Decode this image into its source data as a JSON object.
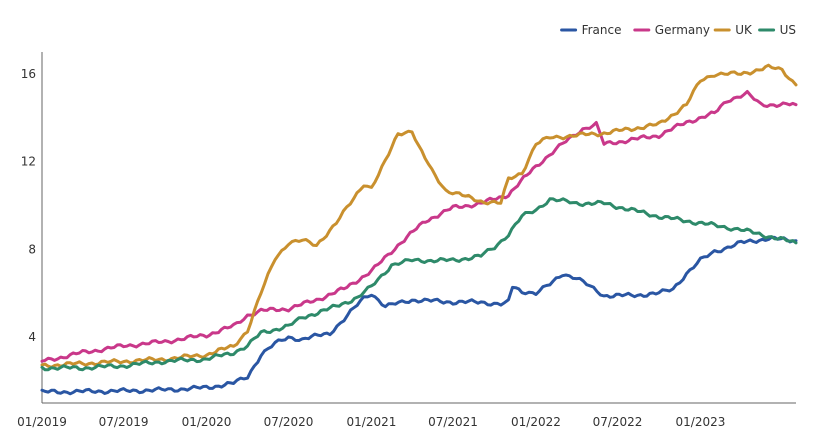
{
  "chart_data": {
    "type": "line",
    "title": "",
    "xlabel": "",
    "ylabel": "",
    "x_axis": {
      "type": "time",
      "range": [
        "2019-01",
        "2023-08"
      ],
      "tick_labels": [
        "01/2019",
        "07/2019",
        "01/2020",
        "07/2020",
        "01/2021",
        "07/2021",
        "01/2022",
        "07/2022",
        "01/2023"
      ],
      "tick_dates": [
        "2019-01",
        "2019-07",
        "2020-01",
        "2020-07",
        "2021-01",
        "2021-07",
        "2022-01",
        "2022-07",
        "2023-01"
      ]
    },
    "y_axis": {
      "range": [
        1,
        17
      ],
      "ticks": [
        4,
        8,
        12,
        16
      ],
      "tick_labels": [
        "4",
        "8",
        "12",
        "16"
      ]
    },
    "grid": false,
    "legend": {
      "position": "top-right"
    },
    "series": [
      {
        "name": "France",
        "color": "#2a56a3",
        "points": [
          [
            "2019-01-01",
            1.5
          ],
          [
            "2019-07-01",
            1.55
          ],
          [
            "2019-10-01",
            1.6
          ],
          [
            "2020-01-01",
            1.7
          ],
          [
            "2020-03-01",
            1.9
          ],
          [
            "2020-04-01",
            2.2
          ],
          [
            "2020-05-01",
            3.2
          ],
          [
            "2020-06-01",
            3.7
          ],
          [
            "2020-07-01",
            4.0
          ],
          [
            "2020-08-01",
            3.9
          ],
          [
            "2020-10-01",
            4.2
          ],
          [
            "2020-11-01",
            4.8
          ],
          [
            "2020-12-15",
            5.8
          ],
          [
            "2021-01-01",
            6.0
          ],
          [
            "2021-02-01",
            5.4
          ],
          [
            "2021-04-01",
            5.7
          ],
          [
            "2021-07-01",
            5.6
          ],
          [
            "2021-09-01",
            5.6
          ],
          [
            "2021-10-15",
            5.5
          ],
          [
            "2021-11-01",
            5.6
          ],
          [
            "2021-11-10",
            6.3
          ],
          [
            "2021-12-01",
            6.1
          ],
          [
            "2022-01-01",
            6.0
          ],
          [
            "2022-02-01",
            6.4
          ],
          [
            "2022-03-01",
            6.9
          ],
          [
            "2022-04-01",
            6.7
          ],
          [
            "2022-05-01",
            6.3
          ],
          [
            "2022-06-01",
            5.9
          ],
          [
            "2022-08-01",
            5.9
          ],
          [
            "2022-10-01",
            6.0
          ],
          [
            "2022-11-01",
            6.2
          ],
          [
            "2022-12-01",
            6.9
          ],
          [
            "2023-01-01",
            7.5
          ],
          [
            "2023-02-01",
            7.9
          ],
          [
            "2023-04-01",
            8.3
          ],
          [
            "2023-06-01",
            8.5
          ],
          [
            "2023-08-01",
            8.4
          ]
        ]
      },
      {
        "name": "Germany",
        "color": "#c9388a",
        "points": [
          [
            "2019-01-01",
            2.9
          ],
          [
            "2019-04-01",
            3.3
          ],
          [
            "2019-07-01",
            3.6
          ],
          [
            "2019-10-01",
            3.8
          ],
          [
            "2020-01-01",
            4.1
          ],
          [
            "2020-03-01",
            4.5
          ],
          [
            "2020-04-01",
            5.0
          ],
          [
            "2020-05-01",
            5.2
          ],
          [
            "2020-07-01",
            5.3
          ],
          [
            "2020-09-01",
            5.7
          ],
          [
            "2020-11-01",
            6.2
          ],
          [
            "2021-01-01",
            7.0
          ],
          [
            "2021-03-01",
            8.2
          ],
          [
            "2021-05-01",
            9.3
          ],
          [
            "2021-07-01",
            9.9
          ],
          [
            "2021-09-01",
            10.1
          ],
          [
            "2021-11-01",
            10.5
          ],
          [
            "2022-01-01",
            11.8
          ],
          [
            "2022-03-01",
            12.8
          ],
          [
            "2022-04-15",
            13.5
          ],
          [
            "2022-05-15",
            13.7
          ],
          [
            "2022-06-01",
            12.8
          ],
          [
            "2022-08-01",
            13.0
          ],
          [
            "2022-10-01",
            13.2
          ],
          [
            "2022-12-01",
            13.8
          ],
          [
            "2023-02-01",
            14.2
          ],
          [
            "2023-03-01",
            14.8
          ],
          [
            "2023-04-15",
            15.1
          ],
          [
            "2023-05-15",
            14.6
          ],
          [
            "2023-08-01",
            14.6
          ]
        ]
      },
      {
        "name": "UK",
        "color": "#c9902e",
        "points": [
          [
            "2019-01-01",
            2.7
          ],
          [
            "2019-04-01",
            2.8
          ],
          [
            "2019-07-01",
            2.9
          ],
          [
            "2019-10-01",
            3.0
          ],
          [
            "2020-01-01",
            3.2
          ],
          [
            "2020-03-01",
            3.6
          ],
          [
            "2020-04-01",
            4.3
          ],
          [
            "2020-05-01",
            6.0
          ],
          [
            "2020-06-01",
            7.6
          ],
          [
            "2020-07-01",
            8.3
          ],
          [
            "2020-08-01",
            8.4
          ],
          [
            "2020-09-01",
            8.2
          ],
          [
            "2020-10-15",
            9.2
          ],
          [
            "2020-11-15",
            10.1
          ],
          [
            "2020-12-15",
            11.0
          ],
          [
            "2021-01-01",
            10.8
          ],
          [
            "2021-02-01",
            12.0
          ],
          [
            "2021-03-01",
            13.3
          ],
          [
            "2021-04-01",
            13.4
          ],
          [
            "2021-04-15",
            12.7
          ],
          [
            "2021-05-15",
            11.6
          ],
          [
            "2021-06-15",
            10.7
          ],
          [
            "2021-07-15",
            10.5
          ],
          [
            "2021-09-01",
            10.2
          ],
          [
            "2021-10-15",
            10.1
          ],
          [
            "2021-11-01",
            11.2
          ],
          [
            "2021-12-01",
            11.5
          ],
          [
            "2022-01-01",
            12.8
          ],
          [
            "2022-02-01",
            13.1
          ],
          [
            "2022-04-01",
            13.2
          ],
          [
            "2022-06-01",
            13.3
          ],
          [
            "2022-08-01",
            13.5
          ],
          [
            "2022-10-01",
            13.7
          ],
          [
            "2022-12-01",
            14.6
          ],
          [
            "2023-01-01",
            15.7
          ],
          [
            "2023-02-01",
            16.0
          ],
          [
            "2023-04-01",
            16.0
          ],
          [
            "2023-06-01",
            16.3
          ],
          [
            "2023-07-01",
            16.2
          ],
          [
            "2023-08-01",
            15.5
          ]
        ]
      },
      {
        "name": "US",
        "color": "#2e8a6a",
        "points": [
          [
            "2019-01-01",
            2.6
          ],
          [
            "2019-04-01",
            2.6
          ],
          [
            "2019-07-01",
            2.7
          ],
          [
            "2019-10-01",
            2.9
          ],
          [
            "2020-01-01",
            3.0
          ],
          [
            "2020-03-01",
            3.3
          ],
          [
            "2020-04-01",
            3.6
          ],
          [
            "2020-05-01",
            4.2
          ],
          [
            "2020-07-01",
            4.5
          ],
          [
            "2020-08-01",
            4.9
          ],
          [
            "2020-10-01",
            5.3
          ],
          [
            "2020-12-01",
            5.8
          ],
          [
            "2021-01-01",
            6.3
          ],
          [
            "2021-02-15",
            7.3
          ],
          [
            "2021-04-01",
            7.5
          ],
          [
            "2021-07-01",
            7.5
          ],
          [
            "2021-09-01",
            7.7
          ],
          [
            "2021-10-01",
            8.1
          ],
          [
            "2021-11-01",
            8.7
          ],
          [
            "2021-12-01",
            9.5
          ],
          [
            "2022-01-01",
            9.8
          ],
          [
            "2022-02-01",
            10.3
          ],
          [
            "2022-04-01",
            10.1
          ],
          [
            "2022-06-01",
            10.1
          ],
          [
            "2022-08-01",
            9.8
          ],
          [
            "2022-10-01",
            9.5
          ],
          [
            "2022-12-01",
            9.3
          ],
          [
            "2023-02-01",
            9.1
          ],
          [
            "2023-04-01",
            8.9
          ],
          [
            "2023-06-01",
            8.6
          ],
          [
            "2023-08-01",
            8.3
          ]
        ]
      }
    ]
  }
}
